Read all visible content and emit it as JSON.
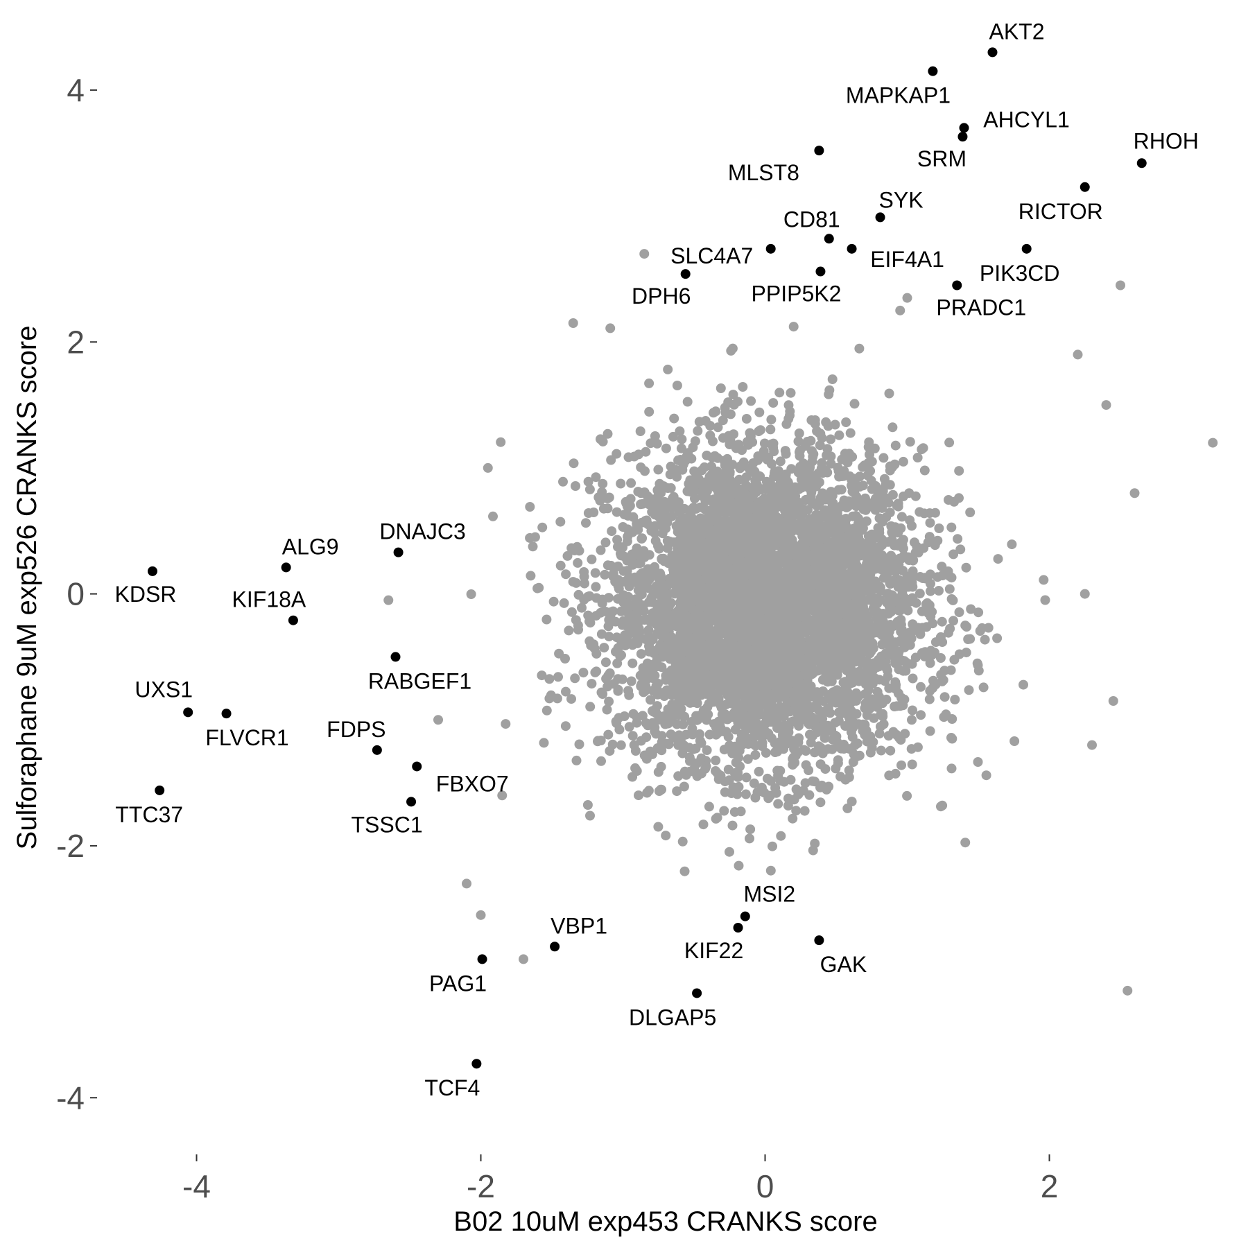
{
  "chart_data": {
    "type": "scatter",
    "title": "",
    "xlabel": "B02 10uM exp453 CRANKS score",
    "ylabel": "Sulforaphane 9uM exp526 CRANKS score",
    "xlim": [
      -4.7,
      3.3
    ],
    "ylim": [
      -4.45,
      4.55
    ],
    "xticks": [
      -4,
      -2,
      0,
      2
    ],
    "yticks": [
      -4,
      -2,
      0,
      2,
      4
    ],
    "xtick_labels": [
      "-4",
      "-2",
      "0",
      "2"
    ],
    "ytick_labels": [
      "-4",
      "-2",
      "0",
      "2",
      "4"
    ],
    "grid": false,
    "legend": "none",
    "background_color": "#a0a0a0",
    "highlight_color": "#000000",
    "background_cloud": {
      "description_note": "dense cloud of gene scores (gray points), roughly bivariate normal",
      "center": [
        0.0,
        -0.1
      ],
      "sd": [
        0.55,
        0.62
      ],
      "approx_count": 5000
    },
    "outlier_points": [
      {
        "x": 3.15,
        "y": 1.2
      },
      {
        "x": 2.6,
        "y": 0.8
      },
      {
        "x": 2.5,
        "y": 2.45
      },
      {
        "x": 2.55,
        "y": -3.15
      },
      {
        "x": 2.45,
        "y": -0.85
      },
      {
        "x": 2.4,
        "y": 1.5
      },
      {
        "x": 2.2,
        "y": 1.9
      },
      {
        "x": 2.25,
        "y": 0.0
      },
      {
        "x": 2.3,
        "y": -1.2
      },
      {
        "x": -1.7,
        "y": -2.9
      },
      {
        "x": -2.0,
        "y": -2.55
      },
      {
        "x": -2.1,
        "y": -2.3
      },
      {
        "x": -1.95,
        "y": 1.0
      },
      {
        "x": -2.65,
        "y": -0.05
      },
      {
        "x": -0.85,
        "y": 2.7
      },
      {
        "x": -1.35,
        "y": 2.15
      },
      {
        "x": 1.0,
        "y": 2.35
      },
      {
        "x": 0.95,
        "y": 2.25
      },
      {
        "x": -2.3,
        "y": -1.0
      },
      {
        "x": -1.85,
        "y": -1.6
      }
    ],
    "labeled_points": [
      {
        "name": "AKT2",
        "x": 1.6,
        "y": 4.3
      },
      {
        "name": "MAPKAP1",
        "x": 1.18,
        "y": 4.15
      },
      {
        "name": "AHCYL1",
        "x": 1.4,
        "y": 3.7
      },
      {
        "name": "SRM",
        "x": 1.39,
        "y": 3.63
      },
      {
        "name": "RHOH",
        "x": 2.65,
        "y": 3.42
      },
      {
        "name": "MLST8",
        "x": 0.38,
        "y": 3.52
      },
      {
        "name": "RICTOR",
        "x": 2.25,
        "y": 3.23
      },
      {
        "name": "SYK",
        "x": 0.81,
        "y": 2.99
      },
      {
        "name": "CD81",
        "x": 0.45,
        "y": 2.82
      },
      {
        "name": "EIF4A1",
        "x": 0.61,
        "y": 2.74
      },
      {
        "name": "PIK3CD",
        "x": 1.84,
        "y": 2.74
      },
      {
        "name": "SLC4A7",
        "x": 0.04,
        "y": 2.74
      },
      {
        "name": "PPIP5K2",
        "x": 0.39,
        "y": 2.56
      },
      {
        "name": "DPH6",
        "x": -0.56,
        "y": 2.54
      },
      {
        "name": "PRADC1",
        "x": 1.35,
        "y": 2.45
      },
      {
        "name": "DNAJC3",
        "x": -2.58,
        "y": 0.33
      },
      {
        "name": "ALG9",
        "x": -3.37,
        "y": 0.21
      },
      {
        "name": "KDSR",
        "x": -4.31,
        "y": 0.18
      },
      {
        "name": "KIF18A",
        "x": -3.32,
        "y": -0.21
      },
      {
        "name": "RABGEF1",
        "x": -2.6,
        "y": -0.5
      },
      {
        "name": "UXS1",
        "x": -4.06,
        "y": -0.94
      },
      {
        "name": "FLVCR1",
        "x": -3.79,
        "y": -0.95
      },
      {
        "name": "FDPS",
        "x": -2.73,
        "y": -1.24
      },
      {
        "name": "FBXO7",
        "x": -2.45,
        "y": -1.37
      },
      {
        "name": "TTC37",
        "x": -4.26,
        "y": -1.56
      },
      {
        "name": "TSSC1",
        "x": -2.49,
        "y": -1.65
      },
      {
        "name": "MSI2",
        "x": -0.14,
        "y": -2.56
      },
      {
        "name": "KIF22",
        "x": -0.19,
        "y": -2.65
      },
      {
        "name": "GAK",
        "x": 0.38,
        "y": -2.75
      },
      {
        "name": "VBP1",
        "x": -1.48,
        "y": -2.8
      },
      {
        "name": "PAG1",
        "x": -1.99,
        "y": -2.9
      },
      {
        "name": "DLGAP5",
        "x": -0.48,
        "y": -3.17
      },
      {
        "name": "TCF4",
        "x": -2.03,
        "y": -3.73
      }
    ]
  }
}
